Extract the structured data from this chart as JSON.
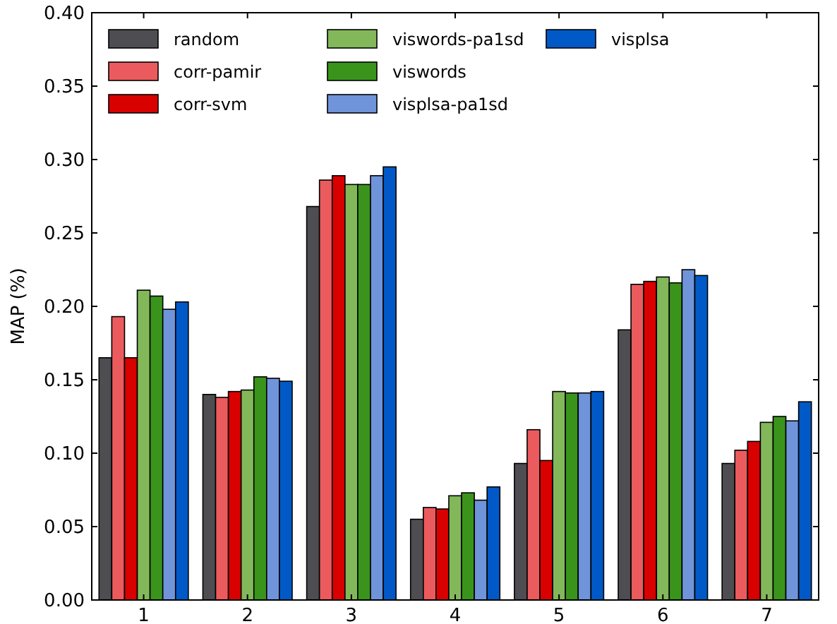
{
  "chart_data": {
    "type": "bar",
    "ylabel": "MAP (%)",
    "categories": [
      "1",
      "2",
      "3",
      "4",
      "5",
      "6",
      "7"
    ],
    "series": [
      {
        "name": "random",
        "color": "#4d4d52",
        "values": [
          0.165,
          0.14,
          0.268,
          0.055,
          0.093,
          0.184,
          0.093
        ]
      },
      {
        "name": "corr-pamir",
        "color": "#eb5b5e",
        "values": [
          0.193,
          0.138,
          0.286,
          0.063,
          0.116,
          0.215,
          0.102
        ]
      },
      {
        "name": "corr-svm",
        "color": "#d90000",
        "values": [
          0.165,
          0.142,
          0.289,
          0.062,
          0.095,
          0.217,
          0.108
        ]
      },
      {
        "name": "viswords-pa1sd",
        "color": "#82b85a",
        "values": [
          0.211,
          0.143,
          0.283,
          0.071,
          0.142,
          0.22,
          0.121
        ]
      },
      {
        "name": "viswords",
        "color": "#3a941c",
        "values": [
          0.207,
          0.152,
          0.283,
          0.073,
          0.141,
          0.216,
          0.125
        ]
      },
      {
        "name": "visplsa-pa1sd",
        "color": "#6f94d9",
        "values": [
          0.198,
          0.151,
          0.289,
          0.068,
          0.141,
          0.225,
          0.122
        ]
      },
      {
        "name": "visplsa",
        "color": "#0059c7",
        "values": [
          0.203,
          0.149,
          0.295,
          0.077,
          0.142,
          0.221,
          0.135
        ]
      }
    ],
    "ylim": [
      0,
      0.4
    ],
    "yticks": [
      {
        "value": 0,
        "label": "0.00"
      },
      {
        "value": 0.05,
        "label": "0.05"
      },
      {
        "value": 0.1,
        "label": "0.10"
      },
      {
        "value": 0.15,
        "label": "0.15"
      },
      {
        "value": 0.2,
        "label": "0.20"
      },
      {
        "value": 0.25,
        "label": "0.25"
      },
      {
        "value": 0.3,
        "label": "0.30"
      },
      {
        "value": 0.35,
        "label": "0.35"
      },
      {
        "value": 0.4,
        "label": "0.40"
      }
    ],
    "grid": false,
    "legend": "top left"
  }
}
